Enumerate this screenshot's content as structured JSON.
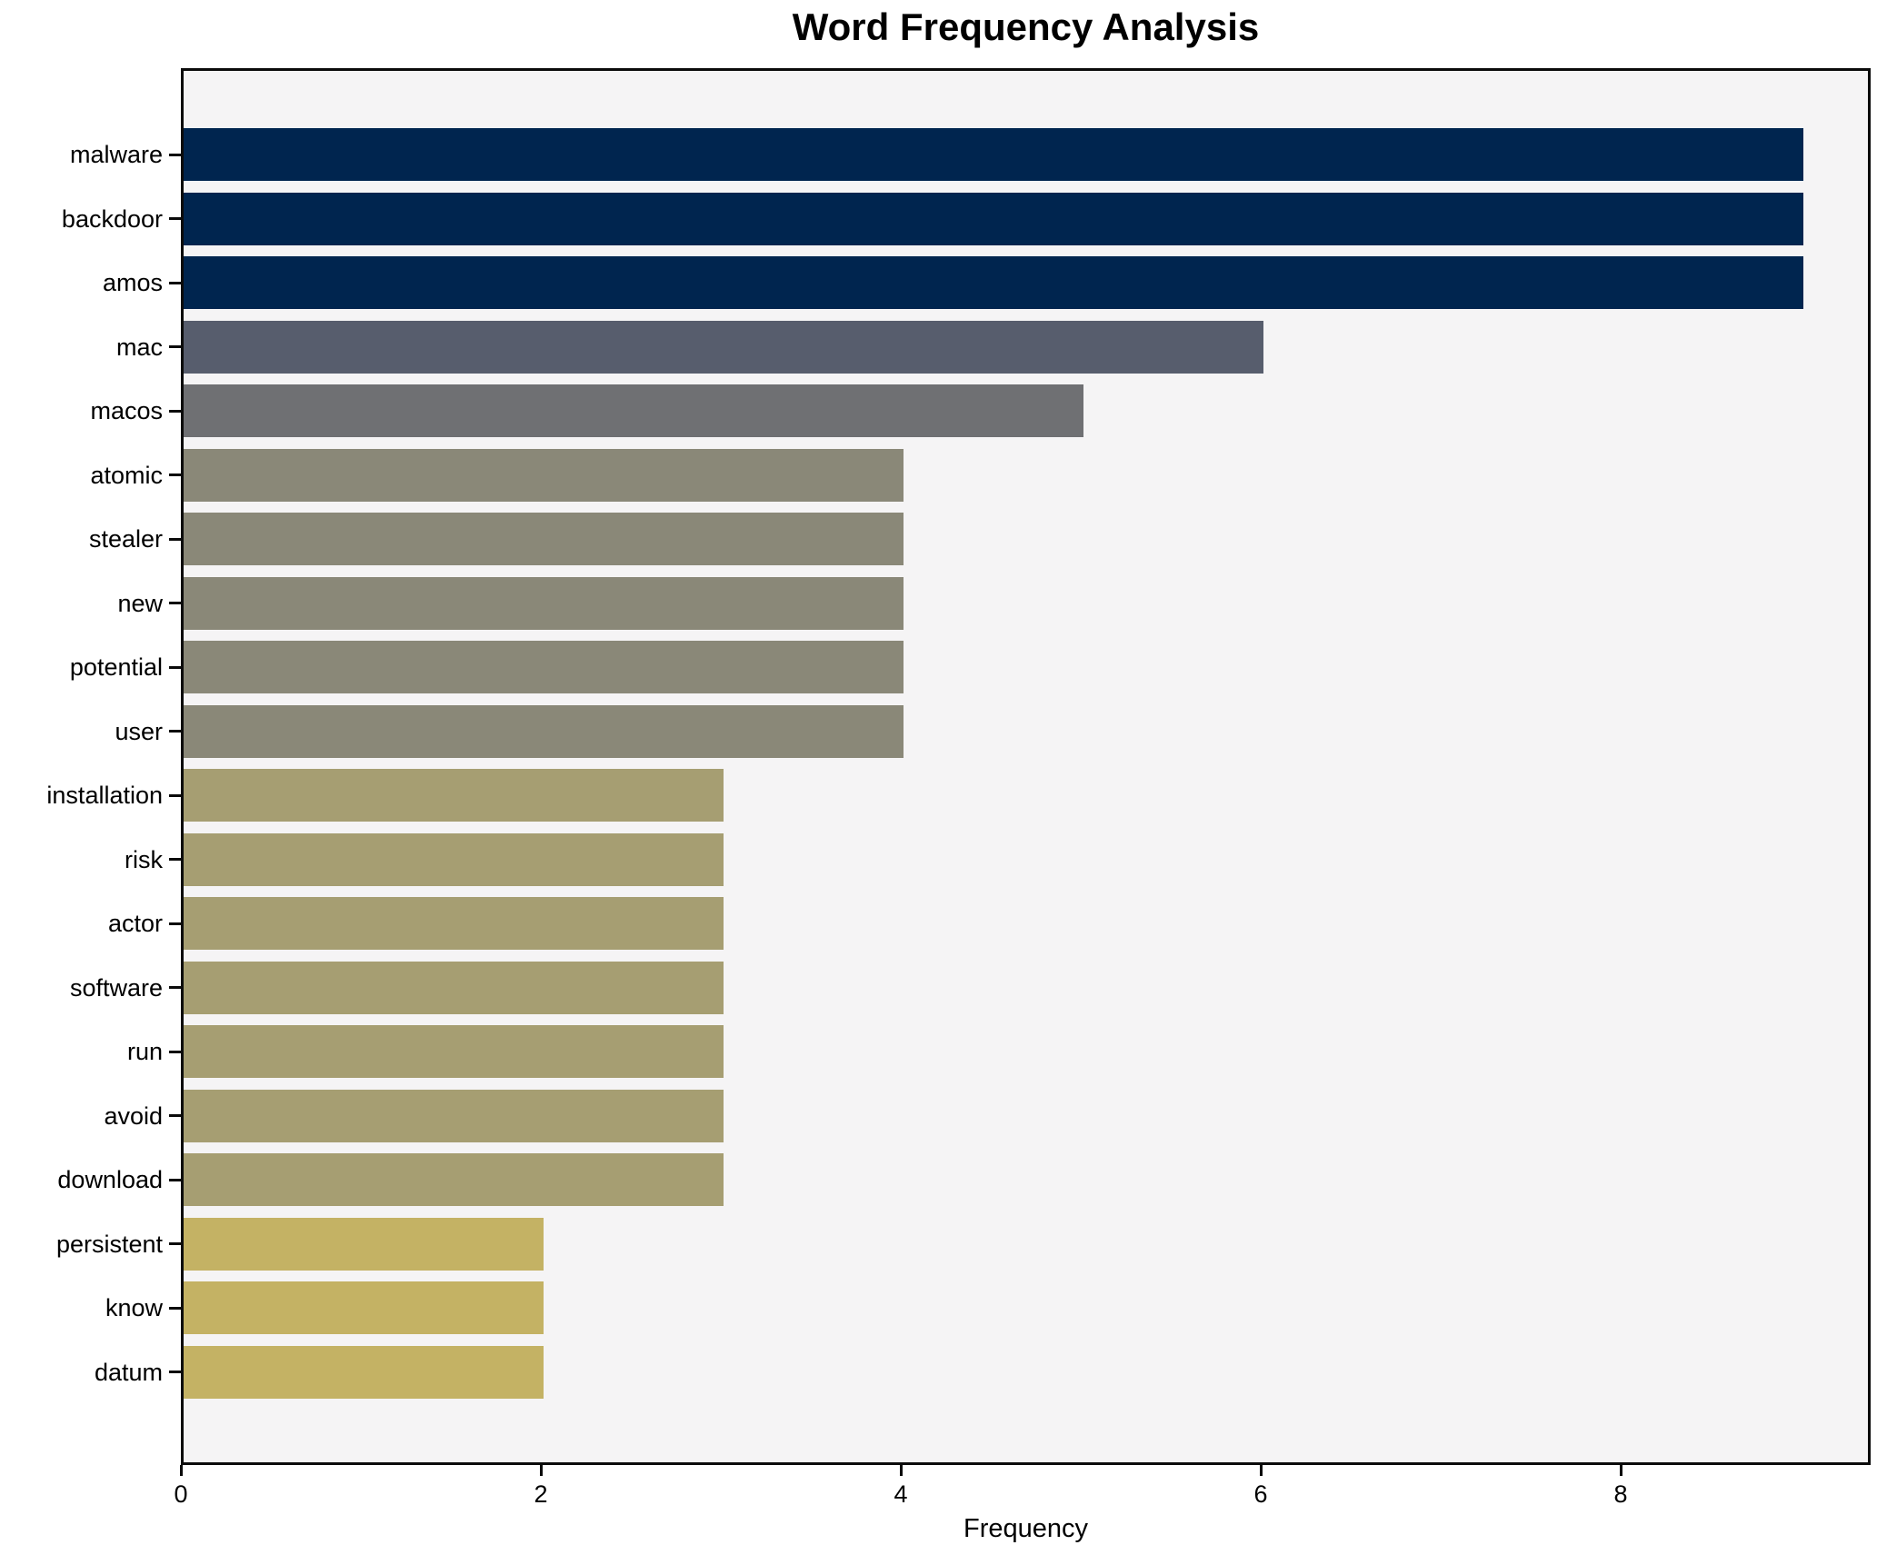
{
  "chart_data": {
    "type": "bar",
    "orientation": "horizontal",
    "title": "Word Frequency Analysis",
    "xlabel": "Frequency",
    "ylabel": "",
    "xlim": [
      0,
      9.39
    ],
    "xticks": [
      0,
      2,
      4,
      6,
      8
    ],
    "grid": false,
    "legend": null,
    "categories": [
      "malware",
      "backdoor",
      "amos",
      "mac",
      "macos",
      "atomic",
      "stealer",
      "new",
      "potential",
      "user",
      "installation",
      "risk",
      "actor",
      "software",
      "run",
      "avoid",
      "download",
      "persistent",
      "know",
      "datum"
    ],
    "values": [
      9,
      9,
      9,
      6,
      5,
      4,
      4,
      4,
      4,
      4,
      3,
      3,
      3,
      3,
      3,
      3,
      3,
      2,
      2,
      2
    ],
    "bar_colors": [
      "#00254f",
      "#00254f",
      "#00254f",
      "#575d6d",
      "#6f7073",
      "#8a8878",
      "#8a8878",
      "#8a8878",
      "#8a8878",
      "#8a8878",
      "#a69e72",
      "#a69e72",
      "#a69e72",
      "#a69e72",
      "#a69e72",
      "#a69e72",
      "#a69e72",
      "#c4b264",
      "#c4b264",
      "#c4b264"
    ],
    "colors": {
      "plot_background": "#f5f4f5",
      "figure_background": "#ffffff",
      "spine": "#0b0b0b",
      "text": "#000000"
    }
  }
}
